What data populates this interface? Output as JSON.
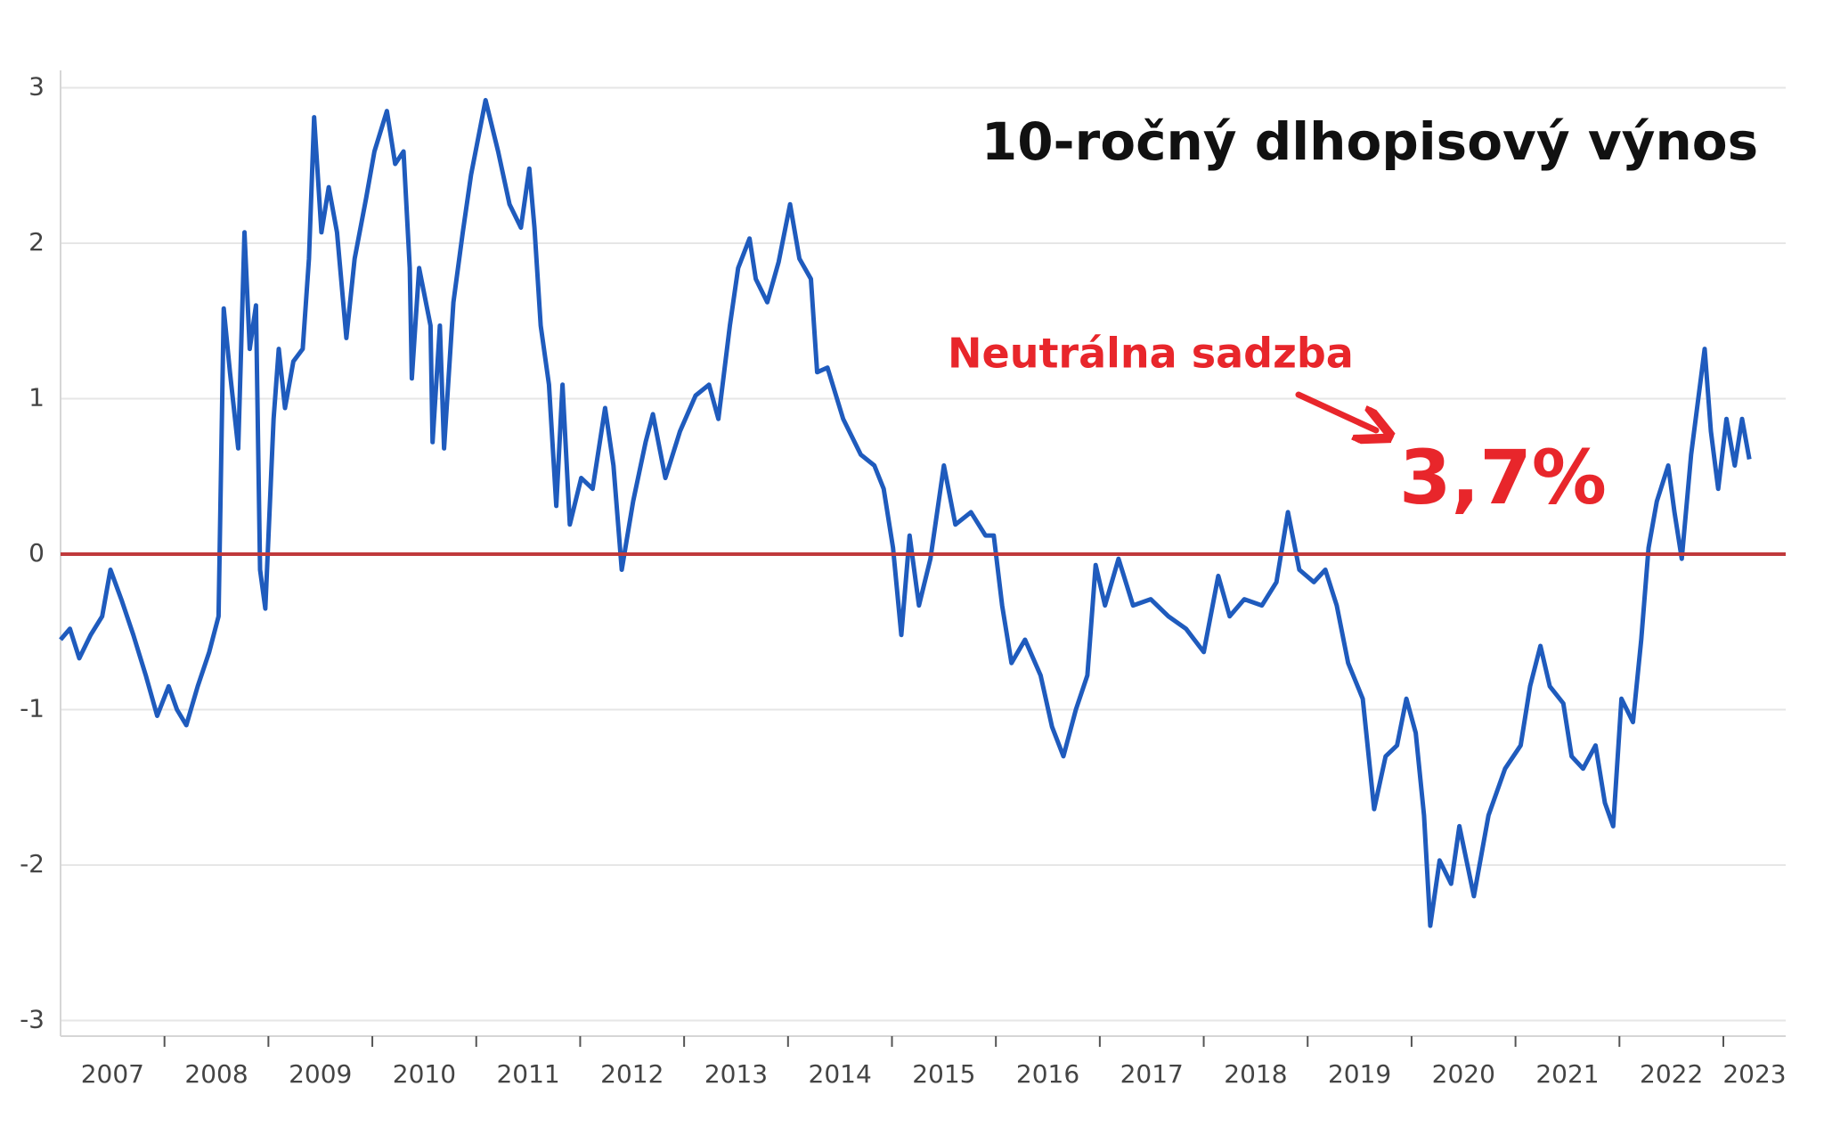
{
  "chart_data": {
    "type": "line",
    "title": "10-ročný dlhopisový výnos",
    "annotations": [
      "Neutrálna sadzba",
      "3,7%"
    ],
    "annotation_color": "#e8262b",
    "year_labels": [
      "2007",
      "2008",
      "2009",
      "2010",
      "2011",
      "2012",
      "2013",
      "2014",
      "2015",
      "2016",
      "2017",
      "2018",
      "2019",
      "2020",
      "2021",
      "2022",
      "2023"
    ],
    "xlim": [
      2007,
      2023.6
    ],
    "xticks": [
      2008,
      2009,
      2010,
      2011,
      2012,
      2013,
      2014,
      2015,
      2016,
      2017,
      2018,
      2019,
      2020,
      2021,
      2022,
      2023
    ],
    "ylim": [
      -3.1,
      3.1
    ],
    "yticks": [
      -3,
      -2,
      -1,
      0,
      1,
      2,
      3
    ],
    "grid": true,
    "reference_line": {
      "value": 0,
      "color": "#c0393b"
    },
    "series": [
      {
        "color": "#1f5bbd",
        "x": [
          2007.0,
          2007.09,
          2007.18,
          2007.29,
          2007.4,
          2007.48,
          2007.59,
          2007.7,
          2007.82,
          2007.93,
          2008.04,
          2008.12,
          2008.21,
          2008.32,
          2008.43,
          2008.52,
          2008.57,
          2008.63,
          2008.71,
          2008.77,
          2008.82,
          2008.88,
          2008.92,
          2008.97,
          2009.05,
          2009.1,
          2009.16,
          2009.24,
          2009.33,
          2009.39,
          2009.44,
          2009.51,
          2009.58,
          2009.66,
          2009.75,
          2009.83,
          2009.94,
          2010.02,
          2010.14,
          2010.22,
          2010.3,
          2010.36,
          2010.38,
          2010.45,
          2010.56,
          2010.58,
          2010.65,
          2010.69,
          2010.78,
          2010.87,
          2010.95,
          2011.09,
          2011.21,
          2011.32,
          2011.43,
          2011.51,
          2011.56,
          2011.62,
          2011.7,
          2011.77,
          2011.83,
          2011.9,
          2012.01,
          2012.12,
          2012.24,
          2012.32,
          2012.4,
          2012.51,
          2012.63,
          2012.7,
          2012.82,
          2012.96,
          2013.11,
          2013.24,
          2013.33,
          2013.44,
          2013.52,
          2013.63,
          2013.69,
          2013.8,
          2013.91,
          2014.02,
          2014.11,
          2014.22,
          2014.28,
          2014.38,
          2014.53,
          2014.7,
          2014.83,
          2014.92,
          2015.01,
          2015.09,
          2015.17,
          2015.26,
          2015.37,
          2015.5,
          2015.61,
          2015.76,
          2015.9,
          2015.98,
          2016.06,
          2016.15,
          2016.28,
          2016.43,
          2016.54,
          2016.65,
          2016.77,
          2016.88,
          2016.96,
          2017.05,
          2017.18,
          2017.32,
          2017.49,
          2017.66,
          2017.83,
          2018.0,
          2018.14,
          2018.25,
          2018.39,
          2018.56,
          2018.7,
          2018.81,
          2018.92,
          2019.06,
          2019.17,
          2019.28,
          2019.39,
          2019.53,
          2019.64,
          2019.75,
          2019.86,
          2019.95,
          2020.04,
          2020.12,
          2020.18,
          2020.27,
          2020.38,
          2020.46,
          2020.6,
          2020.74,
          2020.9,
          2021.05,
          2021.14,
          2021.24,
          2021.33,
          2021.46,
          2021.54,
          2021.65,
          2021.77,
          2021.86,
          2021.94,
          2022.02,
          2022.13,
          2022.21,
          2022.28,
          2022.36,
          2022.47,
          2022.53,
          2022.6,
          2022.69,
          2022.82,
          2022.88,
          2022.95,
          2023.03,
          2023.11,
          2023.18,
          2023.25
        ],
        "values": [
          -0.55,
          -0.48,
          -0.67,
          -0.52,
          -0.4,
          -0.1,
          -0.3,
          -0.52,
          -0.78,
          -1.04,
          -0.85,
          -1.0,
          -1.1,
          -0.85,
          -0.63,
          -0.4,
          1.58,
          1.17,
          0.68,
          2.07,
          1.32,
          1.6,
          -0.1,
          -0.35,
          0.87,
          1.32,
          0.94,
          1.24,
          1.32,
          1.9,
          2.81,
          2.07,
          2.36,
          2.07,
          1.39,
          1.9,
          2.29,
          2.59,
          2.85,
          2.51,
          2.59,
          1.84,
          1.13,
          1.84,
          1.47,
          0.72,
          1.47,
          0.68,
          1.62,
          2.07,
          2.44,
          2.92,
          2.59,
          2.25,
          2.1,
          2.48,
          2.1,
          1.47,
          1.09,
          0.31,
          1.09,
          0.19,
          0.49,
          0.42,
          0.94,
          0.57,
          -0.1,
          0.34,
          0.72,
          0.9,
          0.49,
          0.79,
          1.02,
          1.09,
          0.87,
          1.47,
          1.84,
          2.03,
          1.77,
          1.62,
          1.88,
          2.25,
          1.9,
          1.77,
          1.17,
          1.2,
          0.87,
          0.64,
          0.57,
          0.42,
          0.04,
          -0.52,
          0.12,
          -0.33,
          -0.03,
          0.57,
          0.19,
          0.27,
          0.12,
          0.12,
          -0.33,
          -0.7,
          -0.55,
          -0.78,
          -1.11,
          -1.3,
          -1.0,
          -0.78,
          -0.07,
          -0.33,
          -0.03,
          -0.33,
          -0.29,
          -0.4,
          -0.48,
          -0.63,
          -0.14,
          -0.4,
          -0.29,
          -0.33,
          -0.18,
          0.27,
          -0.1,
          -0.18,
          -0.1,
          -0.33,
          -0.7,
          -0.93,
          -1.64,
          -1.3,
          -1.23,
          -0.93,
          -1.15,
          -1.68,
          -2.39,
          -1.97,
          -2.12,
          -1.75,
          -2.2,
          -1.68,
          -1.38,
          -1.23,
          -0.85,
          -0.59,
          -0.85,
          -0.96,
          -1.3,
          -1.38,
          -1.23,
          -1.6,
          -1.75,
          -0.93,
          -1.08,
          -0.55,
          0.04,
          0.34,
          0.57,
          0.27,
          -0.03,
          0.64,
          1.32,
          0.79,
          0.42,
          0.87,
          0.57,
          0.87,
          0.61
        ]
      }
    ]
  }
}
